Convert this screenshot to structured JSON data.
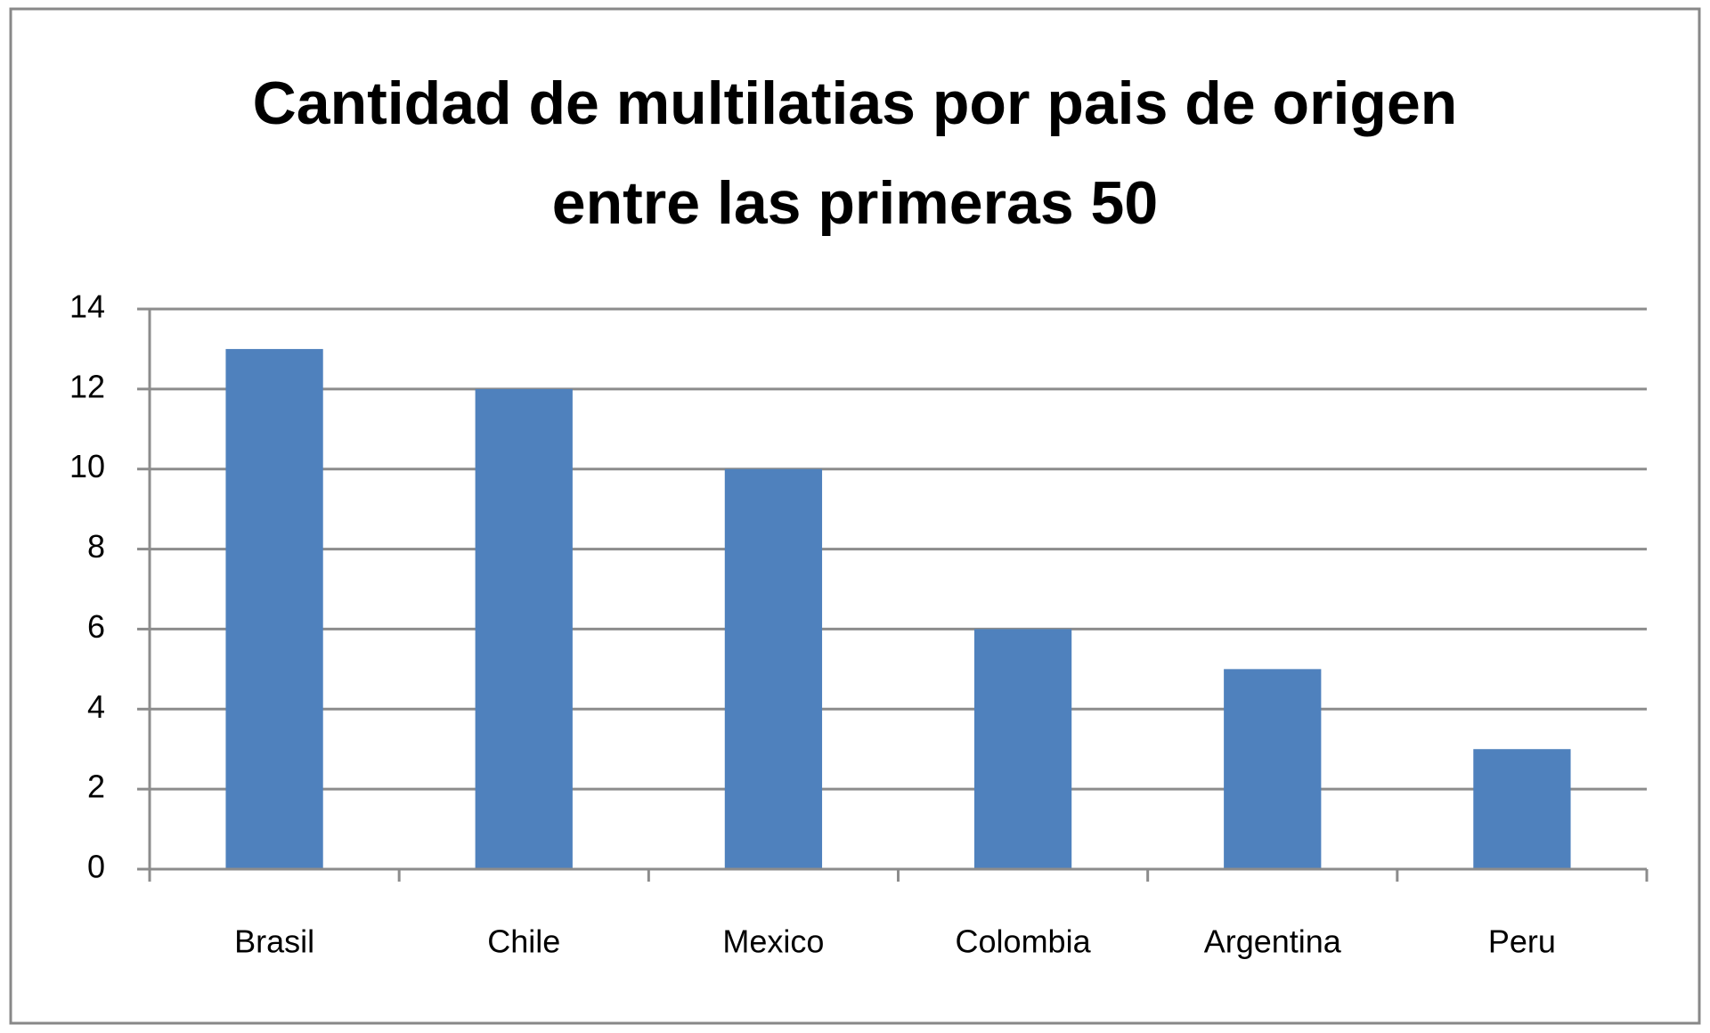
{
  "chart_data": {
    "type": "bar",
    "title": "Cantidad de multilatias por pais de origen entre las primeras 50",
    "categories": [
      "Brasil",
      "Chile",
      "Mexico",
      "Colombia",
      "Argentina",
      "Peru"
    ],
    "values": [
      13,
      12,
      10,
      6,
      5,
      3
    ],
    "color": "#4f81bd",
    "ylim": [
      0,
      14
    ],
    "yticks": [
      0,
      2,
      4,
      6,
      8,
      10,
      12,
      14
    ],
    "grid": true
  }
}
